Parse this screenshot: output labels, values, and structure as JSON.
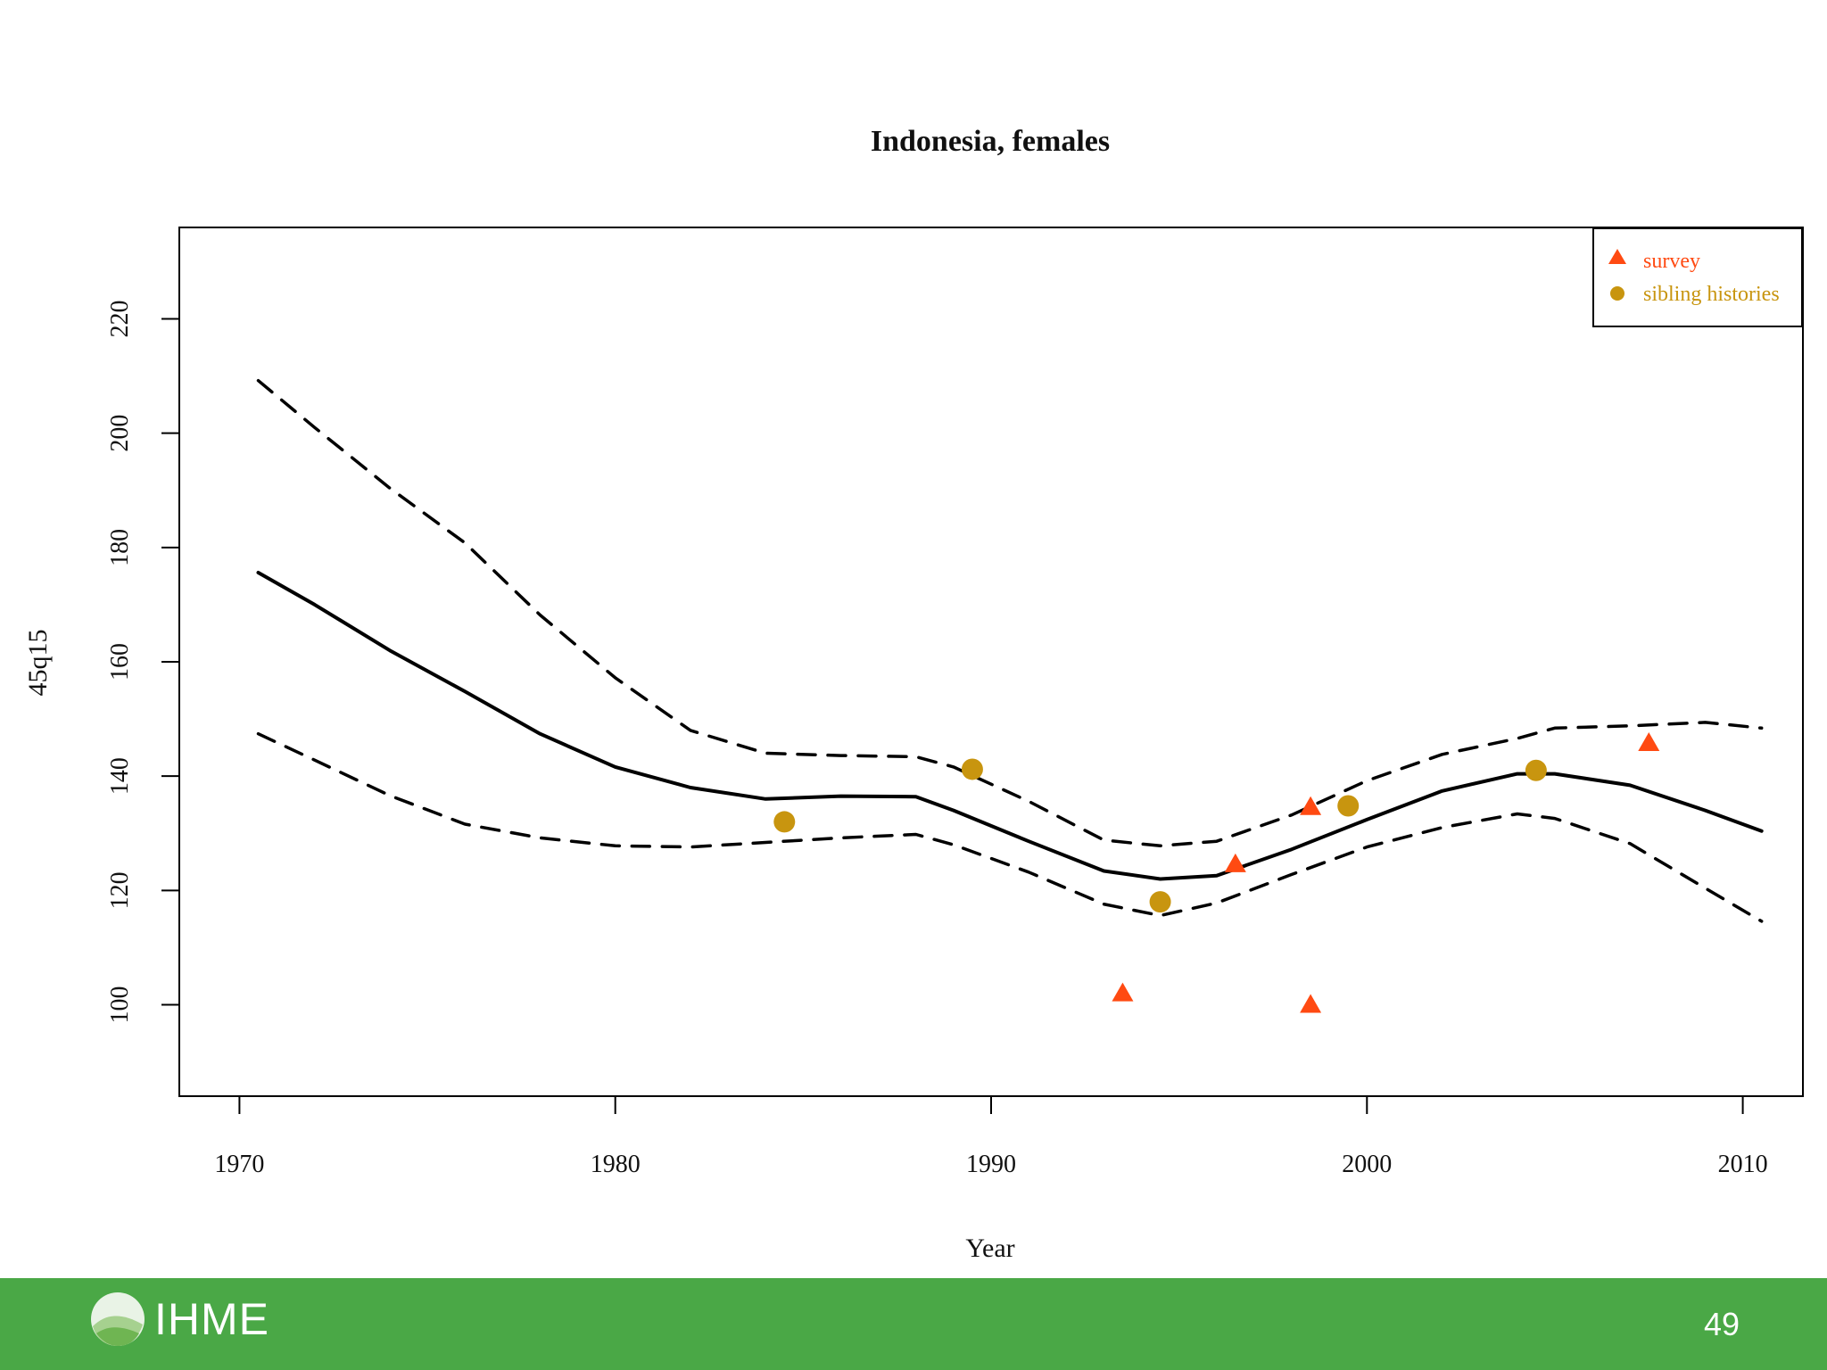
{
  "slide": {
    "page_number": "49"
  },
  "footer": {
    "logo_text": "IHME",
    "background": "#4aa846"
  },
  "chart_data": {
    "type": "line",
    "title": "Indonesia, females",
    "xlabel": "Year",
    "ylabel": "45q15",
    "xlim": [
      1968.4,
      2011.6
    ],
    "ylim": [
      84,
      236
    ],
    "xticks": [
      1970,
      1980,
      1990,
      2000,
      2010
    ],
    "yticks": [
      100,
      120,
      140,
      160,
      180,
      200,
      220
    ],
    "grid": false,
    "legend_position": "top-right",
    "series": [
      {
        "name": "",
        "style": "solid",
        "color": "#000000",
        "x": [
          1970.5,
          1972,
          1974,
          1976,
          1978,
          1980,
          1982,
          1984,
          1986,
          1988,
          1989,
          1991,
          1993,
          1994.5,
          1996,
          1998,
          2000,
          2002,
          2004,
          2005,
          2007,
          2009,
          2010.5
        ],
        "y": [
          175.6,
          170,
          162,
          154.8,
          147.4,
          141.6,
          138,
          136,
          136.5,
          136.4,
          134,
          128.6,
          123.4,
          122,
          122.6,
          127.2,
          132.4,
          137.4,
          140.4,
          140.4,
          138.4,
          134,
          130.4
        ]
      },
      {
        "name": "",
        "style": "dashed",
        "color": "#000000",
        "x": [
          1970.5,
          1972,
          1974,
          1976,
          1978,
          1980,
          1982,
          1984,
          1986,
          1988,
          1989,
          1991,
          1993,
          1994.5,
          1996,
          1998,
          2000,
          2002,
          2004,
          2005,
          2007,
          2009,
          2010.5
        ],
        "y": [
          209.2,
          201,
          190.4,
          180.8,
          168.2,
          157.2,
          148,
          144,
          143.6,
          143.4,
          141.6,
          135.6,
          128.8,
          127.8,
          128.6,
          133.2,
          139.2,
          143.8,
          146.6,
          148.4,
          148.8,
          149.4,
          148.4
        ]
      },
      {
        "name": "",
        "style": "dashed",
        "color": "#000000",
        "x": [
          1970.5,
          1972,
          1974,
          1976,
          1978,
          1980,
          1982,
          1984,
          1986,
          1988,
          1989,
          1991,
          1993,
          1994.5,
          1996,
          1998,
          2000,
          2002,
          2004,
          2005,
          2007,
          2009,
          2010.5
        ],
        "y": [
          147.4,
          142.8,
          136.6,
          131.6,
          129.2,
          127.8,
          127.6,
          128.4,
          129.2,
          129.8,
          128,
          123.2,
          117.6,
          115.6,
          117.8,
          122.8,
          127.6,
          131,
          133.4,
          132.6,
          128.2,
          120.4,
          114.6
        ]
      },
      {
        "name": "survey",
        "style": "markers",
        "marker": "triangle",
        "color": "#ff4a12",
        "x": [
          1993.5,
          1996.5,
          1998.5,
          1998.5,
          2007.5
        ],
        "y": [
          102,
          124.6,
          134.6,
          100,
          145.8
        ]
      },
      {
        "name": "sibling histories",
        "style": "markers",
        "marker": "circle",
        "color": "#c8950f",
        "x": [
          1984.5,
          1989.5,
          1994.5,
          1999.5,
          2004.5
        ],
        "y": [
          132,
          141.2,
          118,
          134.8,
          141
        ]
      }
    ]
  }
}
